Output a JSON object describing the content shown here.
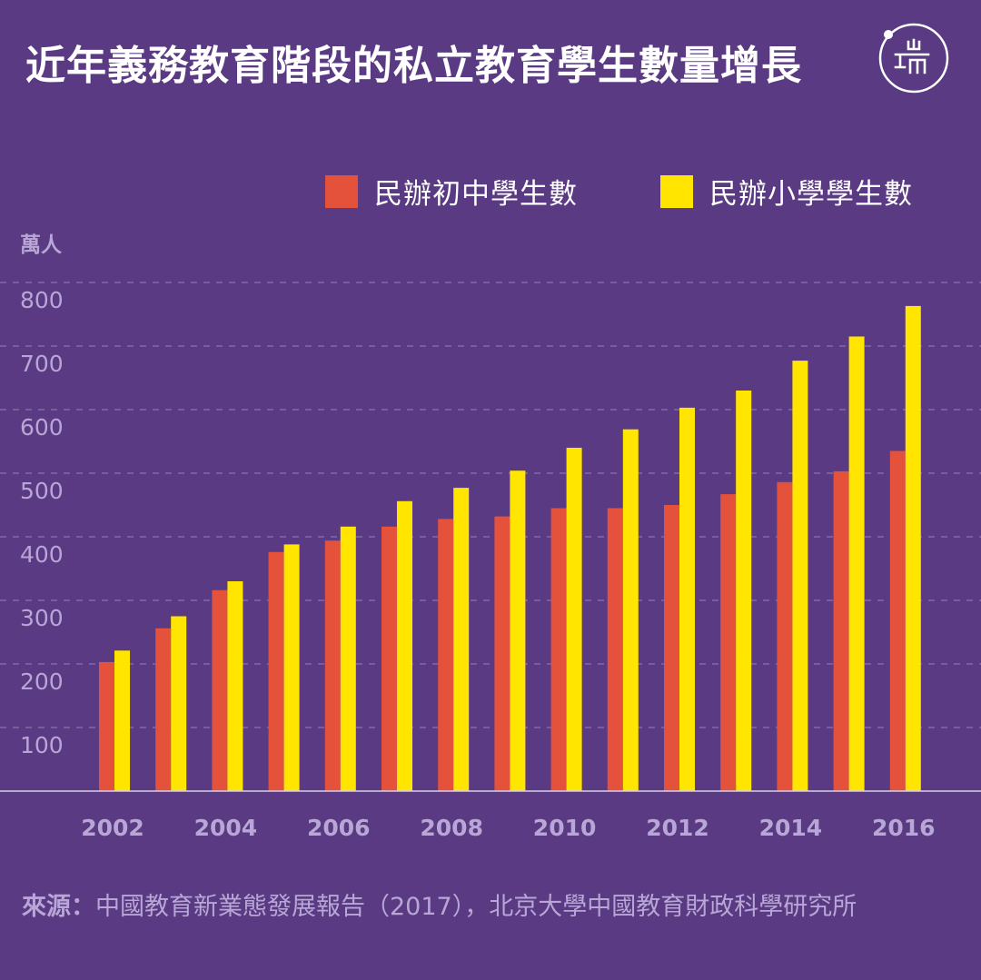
{
  "title": "近年義務教育階段的私立教育學生數量增長",
  "logo_text": "端",
  "unit": "萬人",
  "source": {
    "label": "來源：",
    "text": "中國教育新業態發展報告（2017），北京大學中國教育財政科學研究所"
  },
  "colors": {
    "background": "#5a3a82",
    "middle_school": "#e4523c",
    "primary_school": "#ffe500",
    "axis_text": "#b7a6d6",
    "grid": "#8a74ab"
  },
  "chart_data": {
    "type": "bar",
    "title": "近年義務教育階段的私立教育學生數量增長",
    "ylabel": "萬人",
    "xlabel": "",
    "ylim": [
      0,
      800
    ],
    "yticks": [
      100,
      200,
      300,
      400,
      500,
      600,
      700,
      800
    ],
    "grid": true,
    "legend_position": "top-right",
    "categories": [
      "2002",
      "2003",
      "2004",
      "2005",
      "2006",
      "2007",
      "2008",
      "2009",
      "2010",
      "2011",
      "2012",
      "2013",
      "2014",
      "2015",
      "2016"
    ],
    "xtick_labels": [
      "2002",
      "",
      "2004",
      "",
      "2006",
      "",
      "2008",
      "",
      "2010",
      "",
      "2012",
      "",
      "2014",
      "",
      "2016"
    ],
    "series": [
      {
        "name": "民辦初中學生數",
        "color": "#e4523c",
        "values": [
          203,
          256,
          316,
          376,
          394,
          416,
          428,
          432,
          445,
          445,
          450,
          467,
          486,
          503,
          535
        ]
      },
      {
        "name": "民辦小學學生數",
        "color": "#ffe500",
        "values": [
          221,
          275,
          330,
          388,
          416,
          456,
          477,
          504,
          540,
          569,
          603,
          630,
          677,
          715,
          763
        ]
      }
    ]
  }
}
